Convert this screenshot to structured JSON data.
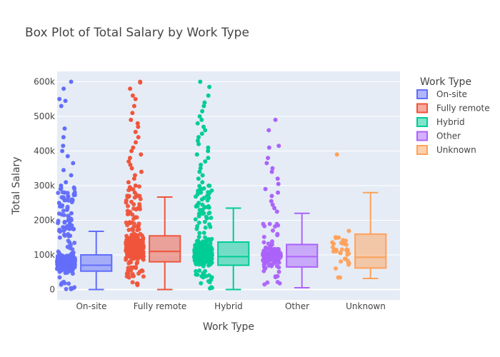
{
  "chart_data": {
    "type": "box",
    "title": "Box Plot of Total Salary by Work Type",
    "xlabel": "Work Type",
    "ylabel": "Total Salary",
    "ylim": [
      -30000,
      630000
    ],
    "yticks": [
      0,
      100000,
      200000,
      300000,
      400000,
      500000,
      600000
    ],
    "ytick_labels": [
      "0",
      "100k",
      "200k",
      "300k",
      "400k",
      "500k",
      "600k"
    ],
    "categories": [
      "On-site",
      "Fully remote",
      "Hybrid",
      "Other",
      "Unknown"
    ],
    "legend_title": "Work Type",
    "legend_position": "right",
    "grid": true,
    "plot_background": "#e5ecf6",
    "series": [
      {
        "name": "On-site",
        "color": "#636efa",
        "min": 0,
        "q1": 53000,
        "median": 70000,
        "q3": 100000,
        "max": 168000,
        "outliers": [
          600000,
          580000,
          550000,
          545000,
          530000,
          465000,
          440000,
          415000,
          400000,
          385000,
          365000,
          345000,
          330000,
          310000,
          300000,
          290000,
          280000,
          270000,
          260000,
          250000,
          240000,
          230000,
          220000,
          210000,
          200000,
          195000,
          190000,
          185000,
          180000,
          175000,
          170000
        ]
      },
      {
        "name": "Fully remote",
        "color": "#ef553b",
        "min": 0,
        "q1": 80000,
        "median": 110000,
        "q3": 155000,
        "max": 267000,
        "outliers": [
          600000,
          598000,
          580000,
          560000,
          550000,
          530000,
          510000,
          490000,
          480000,
          470000,
          455000,
          440000,
          425000,
          410000,
          400000,
          390000,
          380000,
          370000,
          360000,
          350000,
          340000,
          330000,
          320000,
          310000,
          300000,
          290000,
          280000,
          270000
        ]
      },
      {
        "name": "Hybrid",
        "color": "#00cc96",
        "min": 0,
        "q1": 70000,
        "median": 95000,
        "q3": 137000,
        "max": 235000,
        "outliers": [
          600000,
          585000,
          560000,
          540000,
          530000,
          515000,
          500000,
          490000,
          480000,
          470000,
          460000,
          450000,
          440000,
          430000,
          420000,
          410000,
          400000,
          390000,
          380000,
          370000,
          360000,
          350000,
          340000,
          330000,
          320000,
          310000,
          300000,
          290000,
          280000,
          270000,
          260000,
          250000,
          240000
        ]
      },
      {
        "name": "Other",
        "color": "#ab63fa",
        "min": 5000,
        "q1": 65000,
        "median": 95000,
        "q3": 130000,
        "max": 220000,
        "outliers": [
          490000,
          460000,
          415000,
          410000,
          380000,
          365000,
          350000,
          340000,
          320000,
          305000,
          290000,
          280000,
          270000,
          255000,
          245000,
          235000,
          225000
        ]
      },
      {
        "name": "Unknown",
        "color": "#ffa15a",
        "min": 32000,
        "q1": 62000,
        "median": 93000,
        "q3": 160000,
        "max": 280000,
        "outliers": [
          390000
        ]
      }
    ]
  }
}
